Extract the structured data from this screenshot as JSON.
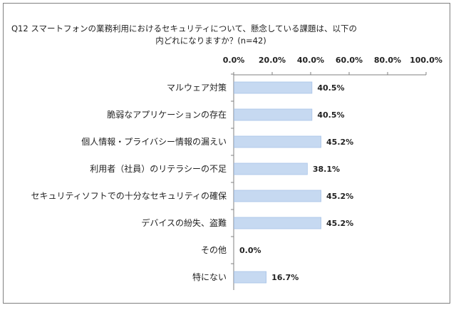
{
  "chart_data": {
    "type": "bar",
    "orientation": "horizontal",
    "title_line1": "Q12 スマートフォンの業務利用におけるセキュリティについて、懸念している課題は、以下の",
    "title_line2": "内どれになりますか？(n=42)",
    "categories": [
      "マルウェア対策",
      "脆弱なアプリケーションの存在",
      "個人情報・プライバシー情報の漏えい",
      "利用者（社員）のリテラシーの不足",
      "セキュリティソフトでの十分なセキュリティの確保",
      "デバイスの紛失、盗難",
      "その他",
      "特にない"
    ],
    "values": [
      40.5,
      40.5,
      45.2,
      38.1,
      45.2,
      45.2,
      0.0,
      16.7
    ],
    "value_labels": [
      "40.5%",
      "40.5%",
      "45.2%",
      "38.1%",
      "45.2%",
      "45.2%",
      "0.0%",
      "16.7%"
    ],
    "xlim": [
      0,
      100
    ],
    "x_ticks": [
      "0.0%",
      "20.0%",
      "40.0%",
      "60.0%",
      "80.0%",
      "100.0%"
    ],
    "axis_position": "top",
    "bar_color": "#C6D9F1",
    "bar_edge_color": "#A9C4E8"
  }
}
